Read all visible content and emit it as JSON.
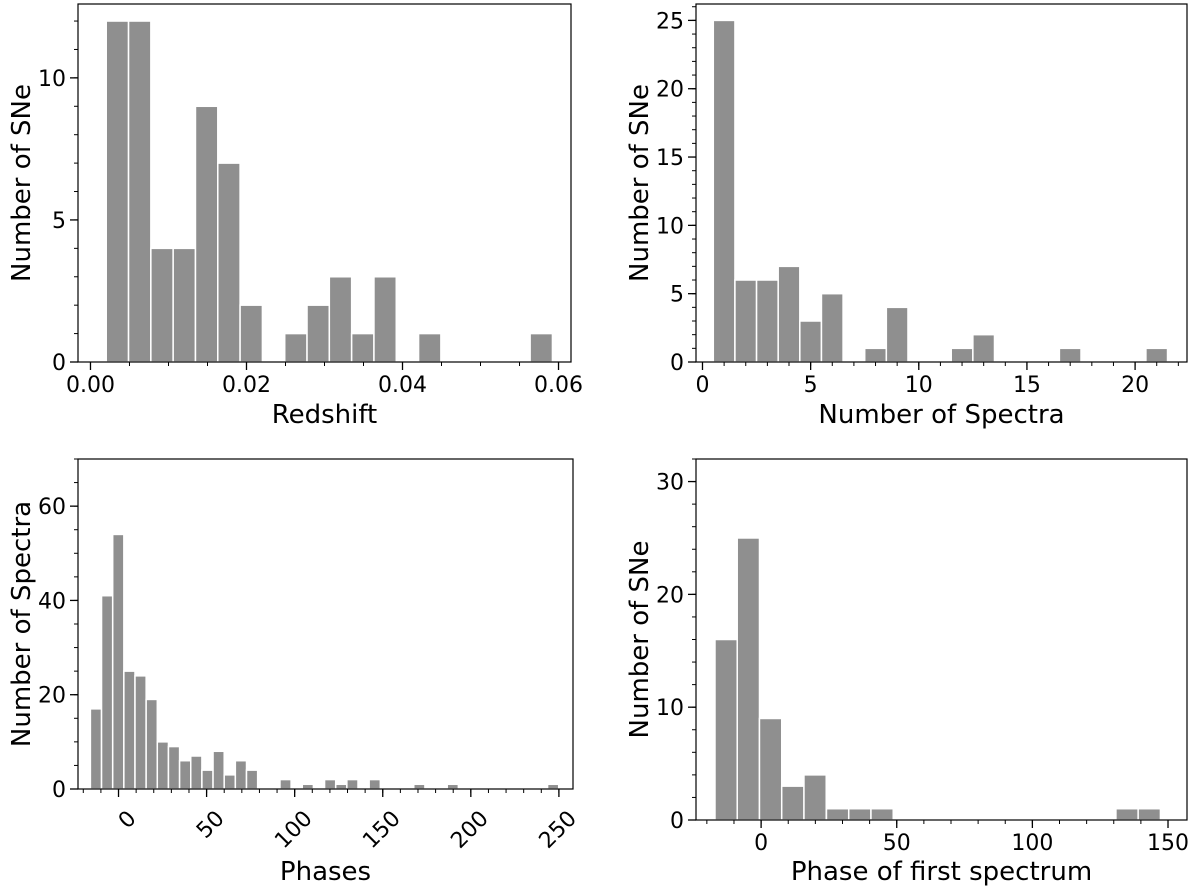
{
  "colors": {
    "bar": "#8f8f8f",
    "axis": "#000000"
  },
  "chart_data": [
    {
      "type": "bar",
      "title": "",
      "xlabel": "Redshift",
      "ylabel": "Number of SNe",
      "xlim": [
        -0.0016,
        0.0616
      ],
      "ylim": [
        0,
        12.6
      ],
      "xticks": [
        0.0,
        0.02,
        0.04,
        0.06
      ],
      "xtick_labels": [
        "0.00",
        "0.02",
        "0.04",
        "0.06"
      ],
      "yticks": [
        0,
        5,
        10
      ],
      "ytick_labels": [
        "0",
        "5",
        "10"
      ],
      "x_minor": 0.005,
      "y_minor": 1,
      "x_tick_rotation": 0,
      "bin_width": 0.00286,
      "bin_centers": [
        0.00345,
        0.00631,
        0.00917,
        0.01203,
        0.01489,
        0.01775,
        0.02061,
        0.02347,
        0.02633,
        0.02919,
        0.03205,
        0.03491,
        0.03777,
        0.04063,
        0.04349,
        0.04635,
        0.04921,
        0.05207,
        0.05493,
        0.05779
      ],
      "values": [
        12,
        12,
        4,
        4,
        9,
        7,
        2,
        0,
        1,
        2,
        3,
        1,
        3,
        0,
        1,
        0,
        0,
        0,
        0,
        1
      ]
    },
    {
      "type": "bar",
      "title": "",
      "xlabel": "Number of Spectra",
      "ylabel": "Number of SNe",
      "xlim": [
        -0.3,
        22.4
      ],
      "ylim": [
        0,
        26.2
      ],
      "xticks": [
        0,
        5,
        10,
        15,
        20
      ],
      "xtick_labels": [
        "0",
        "5",
        "10",
        "15",
        "20"
      ],
      "yticks": [
        0,
        5,
        10,
        15,
        20,
        25
      ],
      "ytick_labels": [
        "0",
        "5",
        "10",
        "15",
        "20",
        "25"
      ],
      "x_minor": 1,
      "y_minor": 1,
      "x_tick_rotation": 0,
      "bin_width": 1.0,
      "bin_centers": [
        1,
        2,
        3,
        4,
        5,
        6,
        7,
        8,
        9,
        10,
        11,
        12,
        13,
        14,
        15,
        16,
        17,
        18,
        19,
        20,
        21
      ],
      "values": [
        25,
        6,
        6,
        7,
        3,
        5,
        0,
        1,
        4,
        0,
        0,
        1,
        2,
        0,
        0,
        0,
        1,
        0,
        0,
        0,
        1
      ]
    },
    {
      "type": "bar",
      "title": "",
      "xlabel": "Phases",
      "ylabel": "Number of Spectra",
      "xlim": [
        -23,
        258
      ],
      "ylim": [
        0,
        70
      ],
      "xticks": [
        0,
        50,
        100,
        150,
        200,
        250
      ],
      "xtick_labels": [
        "0",
        "50",
        "100",
        "150",
        "200",
        "250"
      ],
      "yticks": [
        0,
        20,
        40,
        60
      ],
      "ytick_labels": [
        "0",
        "20",
        "40",
        "60"
      ],
      "x_minor": 10,
      "y_minor": 5,
      "x_tick_rotation": -45,
      "bin_width": 6.33,
      "bin_centers": [
        -12.8,
        -6.47,
        -0.14,
        6.19,
        12.52,
        18.85,
        25.18,
        31.51,
        37.84,
        44.17,
        50.5,
        56.83,
        63.16,
        69.49,
        75.82,
        82.15,
        88.48,
        94.81,
        101.14,
        107.47,
        113.8,
        120.13,
        126.46,
        132.79,
        139.12,
        145.45,
        151.78,
        158.11,
        164.44,
        170.77,
        177.1,
        183.43,
        189.76,
        196.09,
        202.42,
        208.75,
        215.08,
        221.41,
        227.74,
        234.07,
        240.4,
        246.73
      ],
      "values": [
        17,
        41,
        54,
        25,
        24,
        19,
        10,
        9,
        6,
        7,
        4,
        8,
        3,
        6,
        4,
        0,
        0,
        2,
        0,
        1,
        0,
        2,
        1,
        2,
        0,
        2,
        0,
        0,
        0,
        1,
        0,
        0,
        1,
        0,
        0,
        0,
        0,
        0,
        0,
        0,
        0,
        1
      ]
    },
    {
      "type": "bar",
      "title": "",
      "xlabel": "Phase of first spectrum",
      "ylabel": "Number of SNe",
      "xlim": [
        -24,
        157
      ],
      "ylim": [
        0,
        32
      ],
      "xticks": [
        0,
        50,
        100,
        150
      ],
      "xtick_labels": [
        "0",
        "50",
        "100",
        "150"
      ],
      "yticks": [
        0,
        10,
        20,
        30
      ],
      "ytick_labels": [
        "0",
        "10",
        "20",
        "30"
      ],
      "x_minor": 10,
      "y_minor": 2,
      "x_tick_rotation": 0,
      "bin_width": 8.21,
      "bin_centers": [
        -12.9,
        -4.7,
        3.5,
        11.7,
        19.9,
        28.2,
        36.4,
        44.6,
        52.8,
        61.0,
        69.2,
        77.4,
        85.6,
        93.9,
        102.1,
        110.3,
        118.5,
        126.7,
        134.9,
        143.1
      ],
      "values": [
        16,
        25,
        9,
        3,
        4,
        1,
        1,
        1,
        0,
        0,
        0,
        0,
        0,
        0,
        0,
        0,
        0,
        0,
        1,
        1
      ]
    }
  ]
}
